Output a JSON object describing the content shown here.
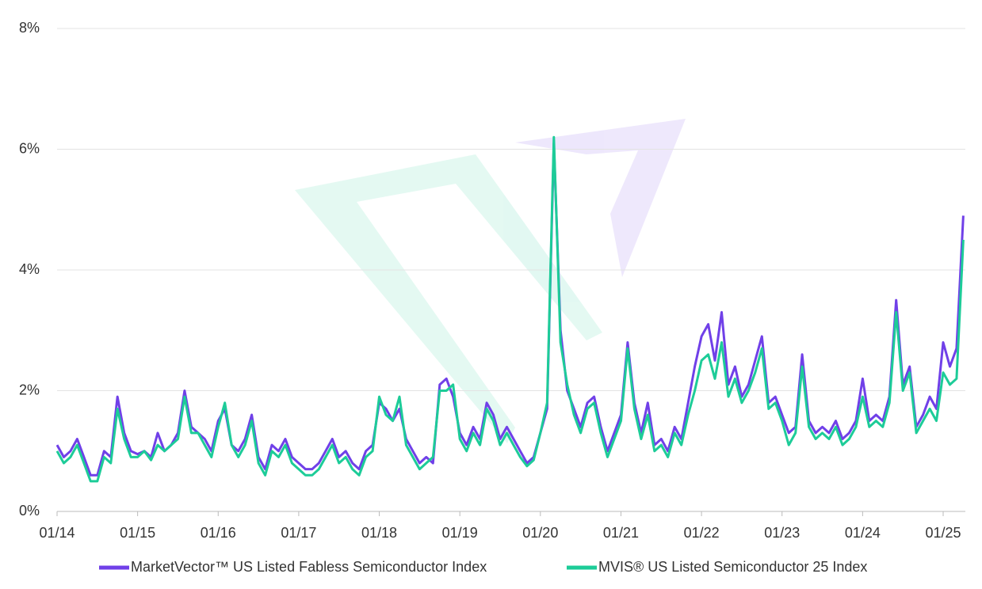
{
  "chart_data": {
    "type": "line",
    "x": [
      "2014-01",
      "2014-02",
      "2014-03",
      "2014-04",
      "2014-05",
      "2014-06",
      "2014-07",
      "2014-08",
      "2014-09",
      "2014-10",
      "2014-11",
      "2014-12",
      "2015-01",
      "2015-02",
      "2015-03",
      "2015-04",
      "2015-05",
      "2015-06",
      "2015-07",
      "2015-08",
      "2015-09",
      "2015-10",
      "2015-11",
      "2015-12",
      "2016-01",
      "2016-02",
      "2016-03",
      "2016-04",
      "2016-05",
      "2016-06",
      "2016-07",
      "2016-08",
      "2016-09",
      "2016-10",
      "2016-11",
      "2016-12",
      "2017-01",
      "2017-02",
      "2017-03",
      "2017-04",
      "2017-05",
      "2017-06",
      "2017-07",
      "2017-08",
      "2017-09",
      "2017-10",
      "2017-11",
      "2017-12",
      "2018-01",
      "2018-02",
      "2018-03",
      "2018-04",
      "2018-05",
      "2018-06",
      "2018-07",
      "2018-08",
      "2018-09",
      "2018-10",
      "2018-11",
      "2018-12",
      "2019-01",
      "2019-02",
      "2019-03",
      "2019-04",
      "2019-05",
      "2019-06",
      "2019-07",
      "2019-08",
      "2019-09",
      "2019-10",
      "2019-11",
      "2019-12",
      "2020-01",
      "2020-02",
      "2020-03",
      "2020-04",
      "2020-05",
      "2020-06",
      "2020-07",
      "2020-08",
      "2020-09",
      "2020-10",
      "2020-11",
      "2020-12",
      "2021-01",
      "2021-02",
      "2021-03",
      "2021-04",
      "2021-05",
      "2021-06",
      "2021-07",
      "2021-08",
      "2021-09",
      "2021-10",
      "2021-11",
      "2021-12",
      "2022-01",
      "2022-02",
      "2022-03",
      "2022-04",
      "2022-05",
      "2022-06",
      "2022-07",
      "2022-08",
      "2022-09",
      "2022-10",
      "2022-11",
      "2022-12",
      "2023-01",
      "2023-02",
      "2023-03",
      "2023-04",
      "2023-05",
      "2023-06",
      "2023-07",
      "2023-08",
      "2023-09",
      "2023-10",
      "2023-11",
      "2023-12",
      "2024-01",
      "2024-02",
      "2024-03",
      "2024-04",
      "2024-05",
      "2024-06",
      "2024-07",
      "2024-08",
      "2024-09",
      "2024-10",
      "2024-11",
      "2024-12",
      "2025-01",
      "2025-02",
      "2025-03",
      "2025-04"
    ],
    "series": [
      {
        "name": "MarketVector™ US Listed Fabless Semiconductor Index",
        "color": "#7040e8",
        "values": [
          1.1,
          0.9,
          1.0,
          1.2,
          0.9,
          0.6,
          0.6,
          1.0,
          0.9,
          1.9,
          1.3,
          1.0,
          0.95,
          1.0,
          0.9,
          1.3,
          1.0,
          1.1,
          1.3,
          2.0,
          1.4,
          1.3,
          1.2,
          1.0,
          1.5,
          1.7,
          1.1,
          1.0,
          1.2,
          1.6,
          0.9,
          0.7,
          1.1,
          1.0,
          1.2,
          0.9,
          0.8,
          0.7,
          0.7,
          0.8,
          1.0,
          1.2,
          0.9,
          1.0,
          0.8,
          0.7,
          1.0,
          1.1,
          1.8,
          1.7,
          1.5,
          1.7,
          1.2,
          1.0,
          0.8,
          0.9,
          0.8,
          2.1,
          2.2,
          1.9,
          1.3,
          1.1,
          1.4,
          1.2,
          1.8,
          1.6,
          1.2,
          1.4,
          1.2,
          1.0,
          0.8,
          0.9,
          1.3,
          1.7,
          6.1,
          3.0,
          2.0,
          1.7,
          1.4,
          1.8,
          1.9,
          1.4,
          1.0,
          1.3,
          1.6,
          2.8,
          1.8,
          1.3,
          1.8,
          1.1,
          1.2,
          1.0,
          1.4,
          1.2,
          1.8,
          2.4,
          2.9,
          3.1,
          2.5,
          3.3,
          2.1,
          2.4,
          1.9,
          2.1,
          2.5,
          2.9,
          1.8,
          1.9,
          1.6,
          1.3,
          1.4,
          2.6,
          1.5,
          1.3,
          1.4,
          1.3,
          1.5,
          1.2,
          1.3,
          1.5,
          2.2,
          1.5,
          1.6,
          1.5,
          1.9,
          3.5,
          2.1,
          2.4,
          1.4,
          1.6,
          1.9,
          1.7,
          2.8,
          2.4,
          2.7,
          4.9
        ]
      },
      {
        "name": "MVIS® US Listed Semiconductor 25 Index",
        "color": "#1dcc98",
        "values": [
          1.0,
          0.8,
          0.9,
          1.1,
          0.8,
          0.5,
          0.5,
          0.9,
          0.8,
          1.7,
          1.2,
          0.9,
          0.9,
          1.0,
          0.85,
          1.1,
          1.0,
          1.1,
          1.2,
          1.9,
          1.3,
          1.3,
          1.1,
          0.9,
          1.4,
          1.8,
          1.1,
          0.9,
          1.1,
          1.5,
          0.8,
          0.6,
          1.0,
          0.9,
          1.1,
          0.8,
          0.7,
          0.6,
          0.6,
          0.7,
          0.9,
          1.1,
          0.8,
          0.9,
          0.7,
          0.6,
          0.9,
          1.0,
          1.9,
          1.6,
          1.5,
          1.9,
          1.1,
          0.9,
          0.7,
          0.8,
          0.9,
          2.0,
          2.0,
          2.1,
          1.2,
          1.0,
          1.3,
          1.1,
          1.7,
          1.5,
          1.1,
          1.3,
          1.1,
          0.9,
          0.75,
          0.85,
          1.3,
          1.8,
          6.2,
          2.8,
          2.1,
          1.6,
          1.3,
          1.7,
          1.8,
          1.3,
          0.9,
          1.2,
          1.5,
          2.7,
          1.7,
          1.2,
          1.6,
          1.0,
          1.1,
          0.9,
          1.3,
          1.1,
          1.6,
          2.0,
          2.5,
          2.6,
          2.2,
          2.8,
          1.9,
          2.2,
          1.8,
          2.0,
          2.3,
          2.7,
          1.7,
          1.8,
          1.5,
          1.1,
          1.3,
          2.4,
          1.4,
          1.2,
          1.3,
          1.2,
          1.4,
          1.1,
          1.2,
          1.4,
          1.9,
          1.4,
          1.5,
          1.4,
          1.8,
          3.3,
          2.0,
          2.3,
          1.3,
          1.5,
          1.7,
          1.5,
          2.3,
          2.1,
          2.2,
          4.5
        ]
      }
    ],
    "xlim": [
      "2014-01",
      "2025-04"
    ],
    "xticks": [
      {
        "value": "2014-01",
        "label": "01/14"
      },
      {
        "value": "2015-01",
        "label": "01/15"
      },
      {
        "value": "2016-01",
        "label": "01/16"
      },
      {
        "value": "2017-01",
        "label": "01/17"
      },
      {
        "value": "2018-01",
        "label": "01/18"
      },
      {
        "value": "2019-01",
        "label": "01/19"
      },
      {
        "value": "2020-01",
        "label": "01/20"
      },
      {
        "value": "2021-01",
        "label": "01/21"
      },
      {
        "value": "2022-01",
        "label": "01/22"
      },
      {
        "value": "2023-01",
        "label": "01/23"
      },
      {
        "value": "2024-01",
        "label": "01/24"
      },
      {
        "value": "2025-01",
        "label": "01/25"
      }
    ],
    "ylim": [
      0,
      8
    ],
    "yticks": [
      {
        "value": 0,
        "label": "0%"
      },
      {
        "value": 2,
        "label": "2%"
      },
      {
        "value": 4,
        "label": "4%"
      },
      {
        "value": 6,
        "label": "6%"
      },
      {
        "value": 8,
        "label": "8%"
      }
    ],
    "grid": true,
    "legend": "bottom"
  }
}
